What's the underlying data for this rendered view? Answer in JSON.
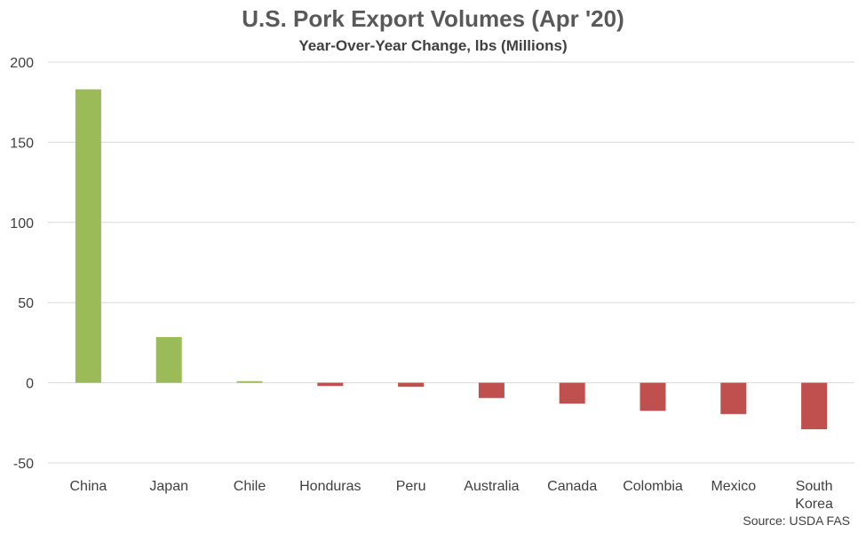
{
  "chart_data": {
    "type": "bar",
    "title": "U.S. Pork Export Volumes (Apr '20)",
    "subtitle": "Year-Over-Year Change, lbs (Millions)",
    "categories": [
      "China",
      "Japan",
      "Chile",
      "Honduras",
      "Peru",
      "Australia",
      "Canada",
      "Colombia",
      "Mexico",
      "South Korea"
    ],
    "values": [
      183,
      28.5,
      1,
      -2,
      -2.5,
      -9.5,
      -13,
      -17.5,
      -19.5,
      -29
    ],
    "ylim": [
      -50,
      200
    ],
    "yticks": [
      -50,
      0,
      50,
      100,
      150,
      200
    ],
    "grid": true,
    "positive_color": "#9BBB59",
    "negative_color": "#C0504D",
    "source": "Source: USDA FAS"
  }
}
